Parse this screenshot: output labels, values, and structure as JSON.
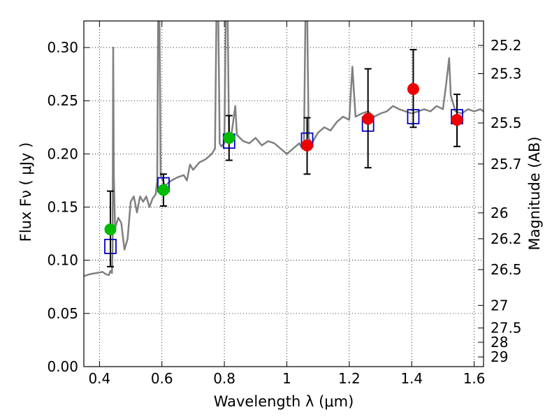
{
  "chart_data": {
    "type": "scatter",
    "xlabel": "Wavelength  λ (μm)",
    "ylabel": "Flux  Fν  ( μJy )",
    "y2label": "Magnitude (AB)",
    "xlim": [
      0.35,
      1.63
    ],
    "ylim": [
      0.0,
      0.325
    ],
    "grid": true,
    "x_ticks": [
      {
        "value": 0.4,
        "label": "0.4"
      },
      {
        "value": 0.6,
        "label": "0.6"
      },
      {
        "value": 0.8,
        "label": "0.8"
      },
      {
        "value": 1.0,
        "label": "1"
      },
      {
        "value": 1.2,
        "label": "1.2"
      },
      {
        "value": 1.4,
        "label": "1.4"
      },
      {
        "value": 1.6,
        "label": "1.6"
      }
    ],
    "y_ticks": [
      {
        "value": 0.0,
        "label": "0.00"
      },
      {
        "value": 0.05,
        "label": "0.05"
      },
      {
        "value": 0.1,
        "label": "0.10"
      },
      {
        "value": 0.15,
        "label": "0.15"
      },
      {
        "value": 0.2,
        "label": "0.20"
      },
      {
        "value": 0.25,
        "label": "0.25"
      },
      {
        "value": 0.3,
        "label": "0.30"
      }
    ],
    "y2_ticks": [
      {
        "value": 25.2,
        "label": "25.2"
      },
      {
        "value": 25.3,
        "label": "25.3"
      },
      {
        "value": 25.5,
        "label": "25.5"
      },
      {
        "value": 25.7,
        "label": "25.7"
      },
      {
        "value": 26.0,
        "label": "26"
      },
      {
        "value": 26.2,
        "label": "26.2"
      },
      {
        "value": 26.5,
        "label": "26.5"
      },
      {
        "value": 27.0,
        "label": "27"
      },
      {
        "value": 27.5,
        "label": "27.5"
      },
      {
        "value": 28.0,
        "label": "28"
      },
      {
        "value": 29.0,
        "label": "29"
      }
    ],
    "spectrum": {
      "color": "#808080",
      "points": [
        [
          0.35,
          0.085
        ],
        [
          0.37,
          0.087
        ],
        [
          0.39,
          0.088
        ],
        [
          0.41,
          0.089
        ],
        [
          0.42,
          0.087
        ],
        [
          0.43,
          0.086
        ],
        [
          0.435,
          0.09
        ],
        [
          0.44,
          0.088
        ],
        [
          0.442,
          0.11
        ],
        [
          0.444,
          0.3
        ],
        [
          0.446,
          0.18
        ],
        [
          0.45,
          0.13
        ],
        [
          0.46,
          0.14
        ],
        [
          0.47,
          0.135
        ],
        [
          0.48,
          0.11
        ],
        [
          0.49,
          0.12
        ],
        [
          0.5,
          0.155
        ],
        [
          0.51,
          0.16
        ],
        [
          0.52,
          0.145
        ],
        [
          0.53,
          0.16
        ],
        [
          0.54,
          0.155
        ],
        [
          0.55,
          0.16
        ],
        [
          0.56,
          0.15
        ],
        [
          0.57,
          0.158
        ],
        [
          0.58,
          0.162
        ],
        [
          0.585,
          0.175
        ],
        [
          0.588,
          0.34
        ],
        [
          0.592,
          0.34
        ],
        [
          0.596,
          0.18
        ],
        [
          0.61,
          0.17
        ],
        [
          0.63,
          0.175
        ],
        [
          0.65,
          0.178
        ],
        [
          0.67,
          0.18
        ],
        [
          0.68,
          0.175
        ],
        [
          0.69,
          0.19
        ],
        [
          0.7,
          0.185
        ],
        [
          0.72,
          0.192
        ],
        [
          0.74,
          0.195
        ],
        [
          0.76,
          0.2
        ],
        [
          0.77,
          0.205
        ],
        [
          0.775,
          0.34
        ],
        [
          0.78,
          0.34
        ],
        [
          0.785,
          0.21
        ],
        [
          0.79,
          0.207
        ],
        [
          0.8,
          0.21
        ],
        [
          0.805,
          0.34
        ],
        [
          0.81,
          0.34
        ],
        [
          0.815,
          0.215
        ],
        [
          0.82,
          0.212
        ],
        [
          0.835,
          0.245
        ],
        [
          0.84,
          0.218
        ],
        [
          0.86,
          0.212
        ],
        [
          0.88,
          0.21
        ],
        [
          0.9,
          0.215
        ],
        [
          0.92,
          0.208
        ],
        [
          0.94,
          0.212
        ],
        [
          0.96,
          0.21
        ],
        [
          0.98,
          0.205
        ],
        [
          1.0,
          0.2
        ],
        [
          1.02,
          0.205
        ],
        [
          1.04,
          0.21
        ],
        [
          1.05,
          0.205
        ],
        [
          1.055,
          0.21
        ],
        [
          1.06,
          0.34
        ],
        [
          1.065,
          0.34
        ],
        [
          1.07,
          0.215
        ],
        [
          1.08,
          0.21
        ],
        [
          1.1,
          0.22
        ],
        [
          1.12,
          0.225
        ],
        [
          1.14,
          0.222
        ],
        [
          1.16,
          0.23
        ],
        [
          1.18,
          0.235
        ],
        [
          1.2,
          0.232
        ],
        [
          1.21,
          0.282
        ],
        [
          1.22,
          0.235
        ],
        [
          1.24,
          0.238
        ],
        [
          1.26,
          0.24
        ],
        [
          1.28,
          0.235
        ],
        [
          1.3,
          0.238
        ],
        [
          1.32,
          0.24
        ],
        [
          1.34,
          0.245
        ],
        [
          1.36,
          0.242
        ],
        [
          1.38,
          0.24
        ],
        [
          1.4,
          0.238
        ],
        [
          1.42,
          0.24
        ],
        [
          1.44,
          0.242
        ],
        [
          1.46,
          0.24
        ],
        [
          1.48,
          0.245
        ],
        [
          1.5,
          0.242
        ],
        [
          1.51,
          0.265
        ],
        [
          1.52,
          0.29
        ],
        [
          1.525,
          0.255
        ],
        [
          1.54,
          0.24
        ],
        [
          1.56,
          0.238
        ],
        [
          1.58,
          0.242
        ],
        [
          1.6,
          0.24
        ],
        [
          1.62,
          0.242
        ],
        [
          1.63,
          0.24
        ]
      ]
    },
    "model_points": {
      "marker": "open-square",
      "color": "#0000cc",
      "points": [
        {
          "x": 0.435,
          "y": 0.113
        },
        {
          "x": 0.605,
          "y": 0.171
        },
        {
          "x": 0.815,
          "y": 0.212
        },
        {
          "x": 1.065,
          "y": 0.213
        },
        {
          "x": 1.26,
          "y": 0.228
        },
        {
          "x": 1.405,
          "y": 0.235
        },
        {
          "x": 1.545,
          "y": 0.235
        }
      ]
    },
    "observed_points": [
      {
        "x": 0.435,
        "y": 0.129,
        "err_low": 0.094,
        "err_high": 0.165,
        "color": "#00bb00"
      },
      {
        "x": 0.605,
        "y": 0.166,
        "err_low": 0.151,
        "err_high": 0.181,
        "color": "#00bb00"
      },
      {
        "x": 0.815,
        "y": 0.215,
        "err_low": 0.194,
        "err_high": 0.236,
        "color": "#00bb00"
      },
      {
        "x": 1.065,
        "y": 0.208,
        "err_low": 0.181,
        "err_high": 0.234,
        "color": "#ee0000"
      },
      {
        "x": 1.26,
        "y": 0.233,
        "err_low": 0.187,
        "err_high": 0.28,
        "color": "#ee0000"
      },
      {
        "x": 1.405,
        "y": 0.261,
        "err_low": 0.225,
        "err_high": 0.298,
        "color": "#ee0000"
      },
      {
        "x": 1.545,
        "y": 0.232,
        "err_low": 0.207,
        "err_high": 0.256,
        "color": "#ee0000"
      }
    ]
  }
}
